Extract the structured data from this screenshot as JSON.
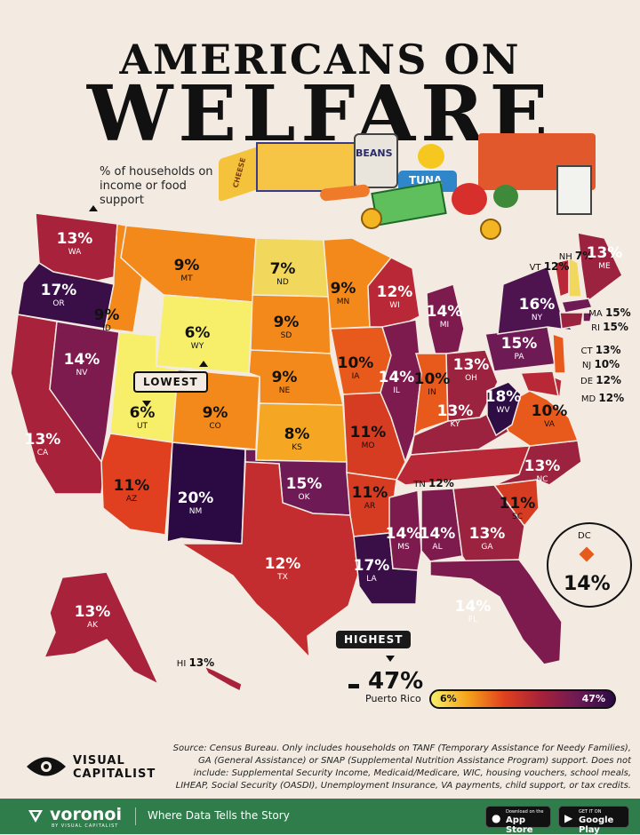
{
  "title": {
    "line1": "AMERICANS ON",
    "line2": "WELFARE"
  },
  "subtitle": "% of households on income or food support",
  "food_labels": {
    "cheese": "CHEESE",
    "beans": "BEANS",
    "tuna": "TUNA"
  },
  "callouts": {
    "lowest": "LOWEST",
    "highest": "HIGHEST"
  },
  "states": [
    {
      "abbr": "WA",
      "value": "13%",
      "color": "#a7223a"
    },
    {
      "abbr": "OR",
      "value": "17%",
      "color": "#3a0f47"
    },
    {
      "abbr": "CA",
      "value": "13%",
      "color": "#a7223a"
    },
    {
      "abbr": "NV",
      "value": "14%",
      "color": "#7d1b4f"
    },
    {
      "abbr": "ID",
      "value": "9%",
      "color": "#f3891a"
    },
    {
      "abbr": "MT",
      "value": "9%",
      "color": "#f3891a"
    },
    {
      "abbr": "WY",
      "value": "6%",
      "color": "#f7ee6a"
    },
    {
      "abbr": "UT",
      "value": "6%",
      "color": "#f7ee6a"
    },
    {
      "abbr": "AZ",
      "value": "11%",
      "color": "#e0401f"
    },
    {
      "abbr": "NM",
      "value": "20%",
      "color": "#2b0a43"
    },
    {
      "abbr": "CO",
      "value": "9%",
      "color": "#f3891a"
    },
    {
      "abbr": "ND",
      "value": "7%",
      "color": "#f1d75c"
    },
    {
      "abbr": "SD",
      "value": "9%",
      "color": "#f3891a"
    },
    {
      "abbr": "NE",
      "value": "9%",
      "color": "#f3891a"
    },
    {
      "abbr": "KS",
      "value": "8%",
      "color": "#f5a623"
    },
    {
      "abbr": "OK",
      "value": "15%",
      "color": "#6d1a55"
    },
    {
      "abbr": "TX",
      "value": "12%",
      "color": "#c32d30"
    },
    {
      "abbr": "MN",
      "value": "9%",
      "color": "#f3891a"
    },
    {
      "abbr": "IA",
      "value": "10%",
      "color": "#e85a1c"
    },
    {
      "abbr": "MO",
      "value": "11%",
      "color": "#d63c22"
    },
    {
      "abbr": "AR",
      "value": "11%",
      "color": "#d63c22"
    },
    {
      "abbr": "LA",
      "value": "17%",
      "color": "#3a0f47"
    },
    {
      "abbr": "WI",
      "value": "12%",
      "color": "#b82836"
    },
    {
      "abbr": "IL",
      "value": "14%",
      "color": "#7d1b4f"
    },
    {
      "abbr": "MI",
      "value": "14%",
      "color": "#7d1b4f"
    },
    {
      "abbr": "IN",
      "value": "10%",
      "color": "#e85a1c"
    },
    {
      "abbr": "OH",
      "value": "13%",
      "color": "#9b2340"
    },
    {
      "abbr": "KY",
      "value": "13%",
      "color": "#9b2340"
    },
    {
      "abbr": "TN",
      "value": "12%",
      "color": "#b82836"
    },
    {
      "abbr": "MS",
      "value": "14%",
      "color": "#7d1b4f"
    },
    {
      "abbr": "AL",
      "value": "14%",
      "color": "#7d1b4f"
    },
    {
      "abbr": "GA",
      "value": "13%",
      "color": "#9b2340"
    },
    {
      "abbr": "FL",
      "value": "14%",
      "color": "#7d1b4f"
    },
    {
      "abbr": "SC",
      "value": "11%",
      "color": "#d63c22"
    },
    {
      "abbr": "NC",
      "value": "13%",
      "color": "#9b2340"
    },
    {
      "abbr": "VA",
      "value": "10%",
      "color": "#e85a1c"
    },
    {
      "abbr": "WV",
      "value": "18%",
      "color": "#2e0c44"
    },
    {
      "abbr": "PA",
      "value": "15%",
      "color": "#6d1a55"
    },
    {
      "abbr": "NY",
      "value": "16%",
      "color": "#4e1450"
    },
    {
      "abbr": "VT",
      "value": "12%",
      "color": "#b82836"
    },
    {
      "abbr": "NH",
      "value": "7%",
      "color": "#f1d75c"
    },
    {
      "abbr": "ME",
      "value": "13%",
      "color": "#9b2340"
    },
    {
      "abbr": "MA",
      "value": "15%",
      "color": "#6d1a55"
    },
    {
      "abbr": "RI",
      "value": "15%",
      "color": "#6d1a55"
    },
    {
      "abbr": "CT",
      "value": "13%",
      "color": "#9b2340"
    },
    {
      "abbr": "NJ",
      "value": "10%",
      "color": "#e85a1c"
    },
    {
      "abbr": "DE",
      "value": "12%",
      "color": "#b82836"
    },
    {
      "abbr": "MD",
      "value": "12%",
      "color": "#b82836"
    },
    {
      "abbr": "AK",
      "value": "13%",
      "color": "#a7223a"
    },
    {
      "abbr": "HI",
      "value": "13%",
      "color": "#a7223a"
    }
  ],
  "dc": {
    "abbr": "DC",
    "value": "14%"
  },
  "puerto_rico": {
    "name": "Puerto Rico",
    "value": "47%"
  },
  "legend": {
    "min": "6%",
    "max": "47%"
  },
  "source": "Source: Census Bureau. Only includes households on TANF (Temporary Assistance for Needy Families), GA (General Assistance) or SNAP (Supplemental Nutrition Assistance Program) support. Does not include: Supplemental Security Income, Medicaid/Medicare, WIC, housing vouchers, school meals, LIHEAP, Social Security (OASDI), Unemployment Insurance, VA payments, child support, or tax credits.",
  "brand": {
    "line1": "VISUAL",
    "line2": "CAPITALIST"
  },
  "footer": {
    "brand": "voronoi",
    "brand_sub": "BY VISUAL CAPITALIST",
    "tagline": "Where Data Tells the Story",
    "app_store_small": "Download on the",
    "app_store": "App Store",
    "google_play_small": "GET IT ON",
    "google_play": "Google Play"
  }
}
